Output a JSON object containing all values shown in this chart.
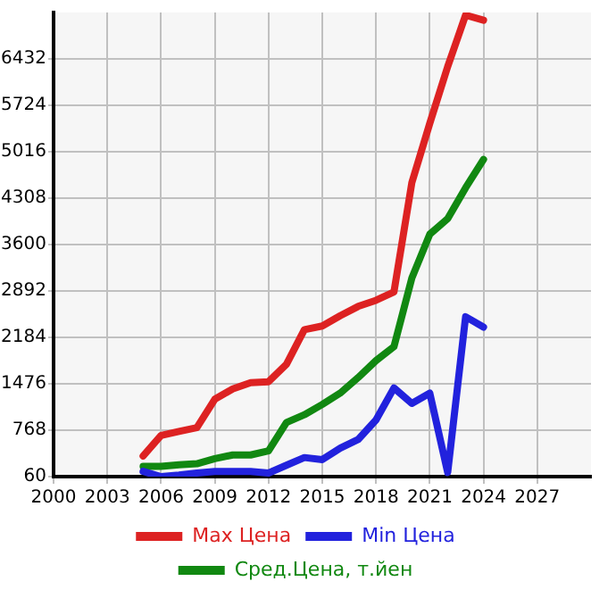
{
  "chart_data": {
    "type": "line",
    "x": [
      2005,
      2006,
      2007,
      2008,
      2009,
      2010,
      2011,
      2012,
      2013,
      2014,
      2015,
      2016,
      2017,
      2018,
      2019,
      2020,
      2021,
      2022,
      2023,
      2024
    ],
    "series": [
      {
        "name": "Max Цена",
        "color": "#dd2222",
        "values": [
          375,
          689,
          750,
          807,
          1240,
          1397,
          1492,
          1507,
          1775,
          2302,
          2357,
          2514,
          2656,
          2750,
          2876,
          4544,
          5448,
          6314,
          7100,
          7022
        ]
      },
      {
        "name": "Min Цена",
        "color": "#2222dd",
        "values": [
          139,
          60,
          84,
          115,
          139,
          139,
          139,
          115,
          233,
          351,
          320,
          493,
          626,
          925,
          1413,
          1177,
          1334,
          123,
          2499,
          2341
        ]
      },
      {
        "name": "Сред.Цена, т.йен",
        "color": "#118811",
        "values": [
          217,
          217,
          241,
          257,
          335,
          390,
          390,
          453,
          886,
          1004,
          1161,
          1334,
          1570,
          1830,
          2042,
          3089,
          3758,
          3994,
          4466,
          4898
        ]
      }
    ],
    "xlim": [
      2000,
      2030
    ],
    "xticks": [
      2000,
      2003,
      2006,
      2009,
      2012,
      2015,
      2018,
      2021,
      2024,
      2027
    ],
    "ylim": [
      60,
      7140
    ],
    "yticks": [
      60,
      768,
      1476,
      2184,
      2892,
      3600,
      4308,
      5016,
      5724,
      6432
    ],
    "grid": true,
    "legend": "bottom",
    "marker": "none",
    "line_style": "solid"
  }
}
